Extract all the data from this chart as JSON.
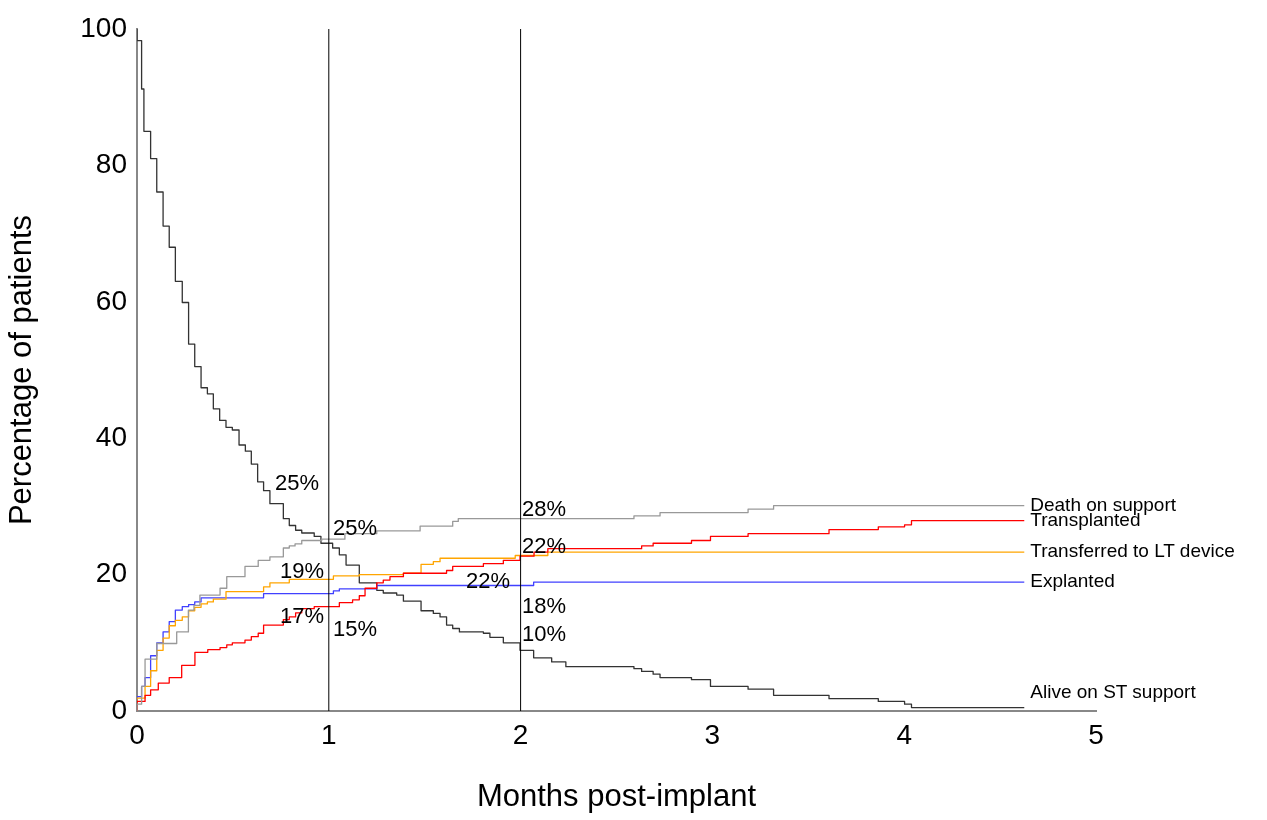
{
  "chart_data": {
    "type": "step",
    "xlabel": "Months post-implant",
    "ylabel": "Percentage of patients",
    "xlim": [
      0,
      5
    ],
    "xticks": [
      0,
      1,
      2,
      3,
      4,
      5
    ],
    "ylim": [
      0,
      100
    ],
    "yticks": [
      0,
      20,
      40,
      60,
      80,
      100
    ],
    "grid": false,
    "legend": false,
    "series": [
      {
        "name": "Death on support",
        "color": "#999999",
        "x": [
          0,
          0.024,
          0.042,
          0.103,
          0.207,
          0.268,
          0.297,
          0.328,
          0.433,
          0.468,
          0.563,
          0.632,
          0.693,
          0.763,
          0.794,
          0.824,
          0.859,
          0.963,
          1.084,
          1.25,
          1.476,
          1.646,
          1.675,
          2.591,
          2.727,
          3.186,
          3.319,
          3.608,
          4.626
        ],
        "values": [
          0,
          1,
          3.6,
          7.6,
          9.9,
          11.6,
          14.8,
          15.5,
          17,
          18,
          19.7,
          21.2,
          22.1,
          22.6,
          23.9,
          24.2,
          24.5,
          25,
          25.2,
          26,
          26.4,
          27.1,
          27.8,
          28.2,
          28.6,
          29.1,
          29.6,
          30.1,
          30.1
        ]
      },
      {
        "name": "Transplanted",
        "color": "#ff0000",
        "x": [
          0,
          0.042,
          0.071,
          0.111,
          0.168,
          0.233,
          0.302,
          0.369,
          0.433,
          0.468,
          0.497,
          0.563,
          0.596,
          0.632,
          0.66,
          0.763,
          0.794,
          0.827,
          0.859,
          0.924,
          1.055,
          1.124,
          1.159,
          1.189,
          1.25,
          1.284,
          1.319,
          1.389,
          1.614,
          1.646,
          1.806,
          1.91,
          1.997,
          2.07,
          2.142,
          2.631,
          2.691,
          2.891,
          2.99,
          3.186,
          3.608,
          3.865,
          4.002,
          4.038,
          4.201,
          4.626
        ],
        "values": [
          0,
          1.4,
          2.3,
          3.1,
          4.1,
          4.9,
          6.7,
          8.6,
          9,
          9.3,
          9.7,
          10,
          10.4,
          10.9,
          11.4,
          12.6,
          13.4,
          13.8,
          14.4,
          15,
          15.3,
          15.9,
          16.3,
          16.9,
          18,
          18.8,
          19.2,
          19.7,
          20.2,
          20.6,
          21.2,
          21.6,
          22.1,
          22.7,
          23.3,
          23.8,
          24.2,
          24.6,
          25,
          25.6,
          26,
          26.6,
          27,
          27.3,
          27.9,
          27.9
        ]
      },
      {
        "name": "Transferred to LT device",
        "color": "#ffa500",
        "x": [
          0,
          0.042,
          0.071,
          0.103,
          0.136,
          0.168,
          0.2,
          0.236,
          0.269,
          0.301,
          0.334,
          0.367,
          0.398,
          0.464,
          0.66,
          0.693,
          0.794,
          1.024,
          1.159,
          1.389,
          1.481,
          1.545,
          1.58,
          1.972,
          2.142,
          2.231,
          4.626
        ],
        "values": [
          0,
          1.9,
          3.6,
          5.9,
          8.9,
          10.7,
          12.5,
          13.3,
          13.8,
          14.7,
          15.2,
          15.7,
          16,
          16.4,
          17.5,
          18.2,
          18.8,
          19.3,
          19.8,
          20,
          20.2,
          21.5,
          21.9,
          22.4,
          22.8,
          23.3,
          23.3
        ]
      },
      {
        "name": "Explanted",
        "color": "#4040ff",
        "x": [
          0,
          0.024,
          0.042,
          0.071,
          0.103,
          0.136,
          0.168,
          0.2,
          0.236,
          0.269,
          0.301,
          0.334,
          0.66,
          1.024,
          1.055,
          1.25,
          2.068,
          2.162,
          4.626
        ],
        "values": [
          0,
          2.1,
          3.6,
          4.9,
          8.1,
          10,
          11.6,
          13.1,
          14.8,
          15.3,
          15.6,
          16,
          16.6,
          17.2,
          17.6,
          17.9,
          18.4,
          18.9,
          18.9
        ]
      },
      {
        "name": "Alive on ST support",
        "color": "#333333",
        "x": [
          0,
          0.024,
          0.036,
          0.071,
          0.103,
          0.136,
          0.168,
          0.2,
          0.236,
          0.269,
          0.301,
          0.334,
          0.367,
          0.398,
          0.431,
          0.464,
          0.497,
          0.532,
          0.565,
          0.596,
          0.629,
          0.66,
          0.693,
          0.763,
          0.794,
          0.827,
          0.859,
          0.924,
          0.959,
          1.02,
          1.055,
          1.09,
          1.159,
          1.25,
          1.284,
          1.354,
          1.389,
          1.481,
          1.545,
          1.58,
          1.614,
          1.646,
          1.681,
          1.806,
          1.84,
          1.91,
          1.997,
          2.068,
          2.162,
          2.236,
          2.591,
          2.631,
          2.691,
          2.727,
          2.891,
          2.99,
          3.186,
          3.319,
          3.608,
          3.865,
          4.002,
          4.038,
          4.201,
          4.626
        ],
        "values": [
          100,
          98.3,
          91.2,
          85,
          81,
          76.1,
          71.1,
          68,
          63,
          59.9,
          53.8,
          50.5,
          47.4,
          46.5,
          44.3,
          42.6,
          41.6,
          41.2,
          39,
          38.1,
          36.2,
          33.6,
          32.3,
          30.4,
          28.2,
          27.2,
          26.5,
          26.1,
          25.6,
          24.6,
          23.9,
          22.9,
          21.4,
          18.8,
          17.7,
          17.3,
          17,
          16.1,
          14.7,
          14.3,
          13.8,
          12.6,
          12.1,
          11.6,
          11.4,
          10.8,
          10,
          8.9,
          7.8,
          7.2,
          6.5,
          6.2,
          5.8,
          5.4,
          4.9,
          4.6,
          3.6,
          3.2,
          2.3,
          1.8,
          1.4,
          1,
          0.5,
          0.5
        ]
      }
    ],
    "ref_lines": [
      {
        "axis": "x",
        "value": 1,
        "color": "#000000"
      },
      {
        "axis": "x",
        "value": 2,
        "color": "#000000"
      }
    ],
    "annotations": [
      {
        "text": "25%",
        "x": 0.72,
        "y": 32.4
      },
      {
        "text": "25%",
        "x": 1.022,
        "y": 25.8
      },
      {
        "text": "19%",
        "x": 0.746,
        "y": 19.5
      },
      {
        "text": "17%",
        "x": 0.746,
        "y": 12.9
      },
      {
        "text": "15%",
        "x": 1.022,
        "y": 11
      },
      {
        "text": "28%",
        "x": 2.007,
        "y": 28.6
      },
      {
        "text": "22%",
        "x": 2.007,
        "y": 23.2
      },
      {
        "text": "22%",
        "x": 1.715,
        "y": 18
      },
      {
        "text": "18%",
        "x": 2.007,
        "y": 14.4
      },
      {
        "text": "10%",
        "x": 2.007,
        "y": 10.3
      }
    ]
  }
}
